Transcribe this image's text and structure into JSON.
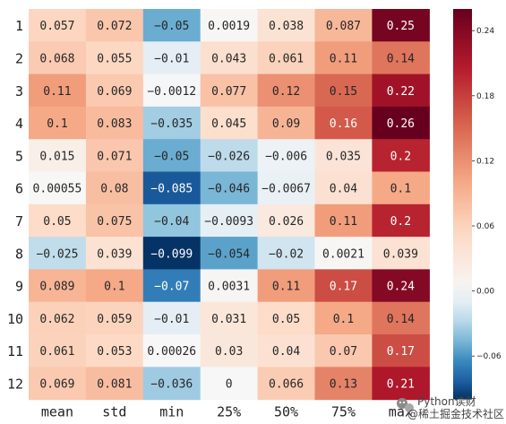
{
  "chart_data": {
    "type": "heatmap",
    "columns": [
      "mean",
      "std",
      "min",
      "25%",
      "50%",
      "75%",
      "max"
    ],
    "rows": [
      "1",
      "2",
      "3",
      "4",
      "5",
      "6",
      "7",
      "8",
      "9",
      "10",
      "11",
      "12"
    ],
    "cells": [
      [
        "0.057",
        "0.072",
        "−0.05",
        "0.0019",
        "0.038",
        "0.087",
        "0.25"
      ],
      [
        "0.068",
        "0.055",
        "−0.01",
        "0.043",
        "0.061",
        "0.11",
        "0.14"
      ],
      [
        "0.11",
        "0.069",
        "−0.0012",
        "0.077",
        "0.12",
        "0.15",
        "0.22"
      ],
      [
        "0.1",
        "0.083",
        "−0.035",
        "0.045",
        "0.09",
        "0.16",
        "0.26"
      ],
      [
        "0.015",
        "0.071",
        "−0.05",
        "−0.026",
        "−0.006",
        "0.035",
        "0.2"
      ],
      [
        "0.00055",
        "0.08",
        "−0.085",
        "−0.046",
        "−0.0067",
        "0.04",
        "0.1"
      ],
      [
        "0.05",
        "0.075",
        "−0.04",
        "−0.0093",
        "0.026",
        "0.11",
        "0.2"
      ],
      [
        "−0.025",
        "0.039",
        "−0.099",
        "−0.054",
        "−0.02",
        "0.0021",
        "0.039"
      ],
      [
        "0.089",
        "0.1",
        "−0.07",
        "0.0031",
        "0.11",
        "0.17",
        "0.24"
      ],
      [
        "0.062",
        "0.059",
        "−0.01",
        "0.031",
        "0.05",
        "0.1",
        "0.14"
      ],
      [
        "0.061",
        "0.053",
        "0.00026",
        "0.03",
        "0.04",
        "0.07",
        "0.17"
      ],
      [
        "0.069",
        "0.081",
        "−0.036",
        "0",
        "0.066",
        "0.13",
        "0.21"
      ]
    ],
    "colorbar": {
      "ticks": [
        "0.24",
        "0.18",
        "0.12",
        "0.06",
        "0.00",
        "−0.06"
      ],
      "range": [
        -0.1,
        0.26
      ],
      "colormap": "RdBu_r"
    }
  },
  "watermark": {
    "icon": "wechat-icon",
    "line1": "Python读财",
    "line2": "@稀土掘金技术社区"
  }
}
